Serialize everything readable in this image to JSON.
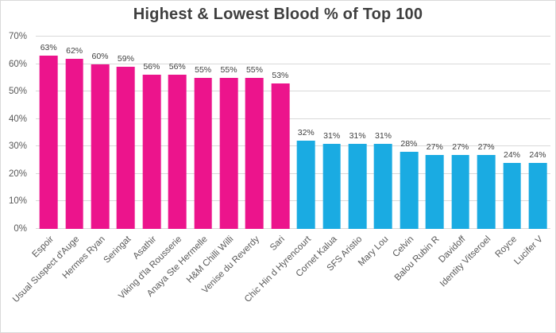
{
  "chart_data": {
    "type": "bar",
    "title": "Highest & Lowest Blood % of Top 100",
    "xlabel": "",
    "ylabel": "",
    "categories": [
      "Espoir",
      "Usual Suspect d'Auge",
      "Hermes Ryan",
      "Seringat",
      "Asathir",
      "Viking d'la Rousserie",
      "Anaya Ste Hermelle",
      "H&M Chilli Willi",
      "Venise du Reverdy",
      "Sari",
      "Chic Hin d Hyrencourt",
      "Cornet Kalua",
      "SFS Aristio",
      "Mary Lou",
      "Celvin",
      "Balou Rubin R",
      "Davidoff",
      "Identity Vitseroel",
      "Royce",
      "Lucifer V"
    ],
    "values": [
      63,
      62,
      60,
      59,
      56,
      56,
      55,
      55,
      55,
      53,
      32,
      31,
      31,
      31,
      28,
      27,
      27,
      27,
      24,
      24
    ],
    "bar_groups": [
      {
        "name": "Highest",
        "color": "#EC148C",
        "from": 0,
        "to": 9
      },
      {
        "name": "Lowest",
        "color": "#1AABE2",
        "from": 10,
        "to": 19
      }
    ],
    "data_label_suffix": "%",
    "ylim": [
      0,
      70
    ],
    "yticks": [
      {
        "value": 0,
        "label": "0%"
      },
      {
        "value": 10,
        "label": "10%"
      },
      {
        "value": 20,
        "label": "20%"
      },
      {
        "value": 30,
        "label": "30%"
      },
      {
        "value": 40,
        "label": "40%"
      },
      {
        "value": 50,
        "label": "50%"
      },
      {
        "value": 60,
        "label": "60%"
      },
      {
        "value": 70,
        "label": "70%"
      }
    ],
    "grid": "horizontal",
    "legend": "none",
    "colors": {
      "title_text": "#3f3f3f",
      "axis_text": "#595959",
      "data_label_text": "#404040",
      "gridline": "#d9d9d9",
      "background": "#ffffff"
    }
  }
}
